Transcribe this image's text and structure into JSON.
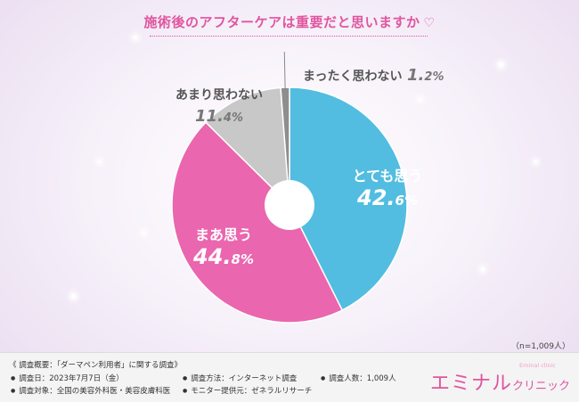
{
  "title": "施術後のアフターケアは重要だと思いますか",
  "chart_data": {
    "type": "pie",
    "donut": true,
    "slices": [
      {
        "label": "とても思う",
        "value": 42.6,
        "pct_main": "42.",
        "pct_dec": "6%",
        "color": "#52bde0"
      },
      {
        "label": "まあ思う",
        "value": 44.8,
        "pct_main": "44.",
        "pct_dec": "8%",
        "color": "#ea66ae"
      },
      {
        "label": "あまり思わない",
        "value": 11.4,
        "pct_main": "11.",
        "pct_dec": "4%",
        "color": "#c8c8c8"
      },
      {
        "label": "まったく思わない",
        "value": 1.2,
        "pct_main": "1.",
        "pct_dec": "2%",
        "color": "#8e8e8e"
      }
    ]
  },
  "sample": "（n=1,009人）",
  "footer": {
    "heading": "《 調査概要：「ダーマペン利用者」に関する調査》",
    "items": [
      "調査日：2023年7月7日（金）",
      "調査方法：インターネット調査",
      "調査人数：1,009人",
      "調査対象：全国の美容外科医・美容皮膚科医",
      "モニター提供元：ゼネラルリサーチ"
    ],
    "brand": "エミナル",
    "brand_kana": "クリニック",
    "brand_sub": "Eminal clinic"
  }
}
